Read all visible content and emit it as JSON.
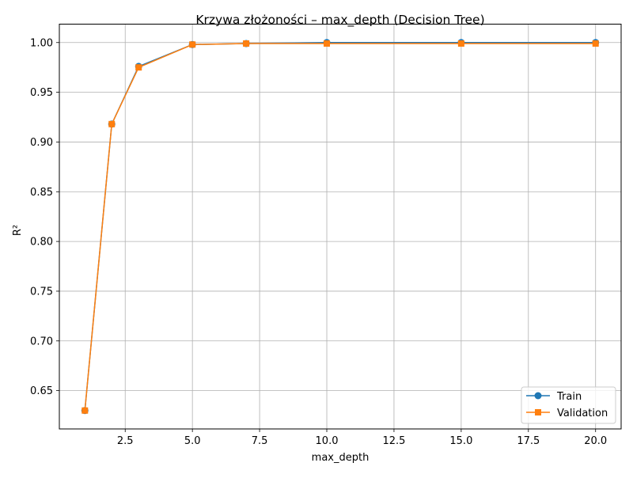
{
  "chart_data": {
    "type": "line",
    "title": "Krzywa złożoności – max_depth (Decision Tree)",
    "xlabel": "max_depth",
    "ylabel": "R²",
    "xlim": [
      0.05,
      20.95
    ],
    "ylim": [
      0.6115,
      1.0185
    ],
    "xticks": [
      {
        "value": 2.5,
        "label": "2.5"
      },
      {
        "value": 5.0,
        "label": "5.0"
      },
      {
        "value": 7.5,
        "label": "7.5"
      },
      {
        "value": 10.0,
        "label": "10.0"
      },
      {
        "value": 12.5,
        "label": "12.5"
      },
      {
        "value": 15.0,
        "label": "15.0"
      },
      {
        "value": 17.5,
        "label": "17.5"
      },
      {
        "value": 20.0,
        "label": "20.0"
      }
    ],
    "yticks": [
      {
        "value": 0.65,
        "label": "0.65"
      },
      {
        "value": 0.7,
        "label": "0.70"
      },
      {
        "value": 0.75,
        "label": "0.75"
      },
      {
        "value": 0.8,
        "label": "0.80"
      },
      {
        "value": 0.85,
        "label": "0.85"
      },
      {
        "value": 0.9,
        "label": "0.90"
      },
      {
        "value": 0.95,
        "label": "0.95"
      },
      {
        "value": 1.0,
        "label": "1.00"
      }
    ],
    "grid": true,
    "legend_position": "bottom-right",
    "x": [
      1,
      2,
      3,
      5,
      7,
      10,
      15,
      20
    ],
    "series": [
      {
        "name": "Train",
        "color": "#1f77b4",
        "marker": "circle",
        "values": [
          0.63,
          0.918,
          0.976,
          0.998,
          0.999,
          1.0,
          1.0,
          1.0
        ]
      },
      {
        "name": "Validation",
        "color": "#ff7f0e",
        "marker": "square",
        "values": [
          0.63,
          0.918,
          0.975,
          0.998,
          0.999,
          0.999,
          0.999,
          0.999
        ]
      }
    ]
  }
}
